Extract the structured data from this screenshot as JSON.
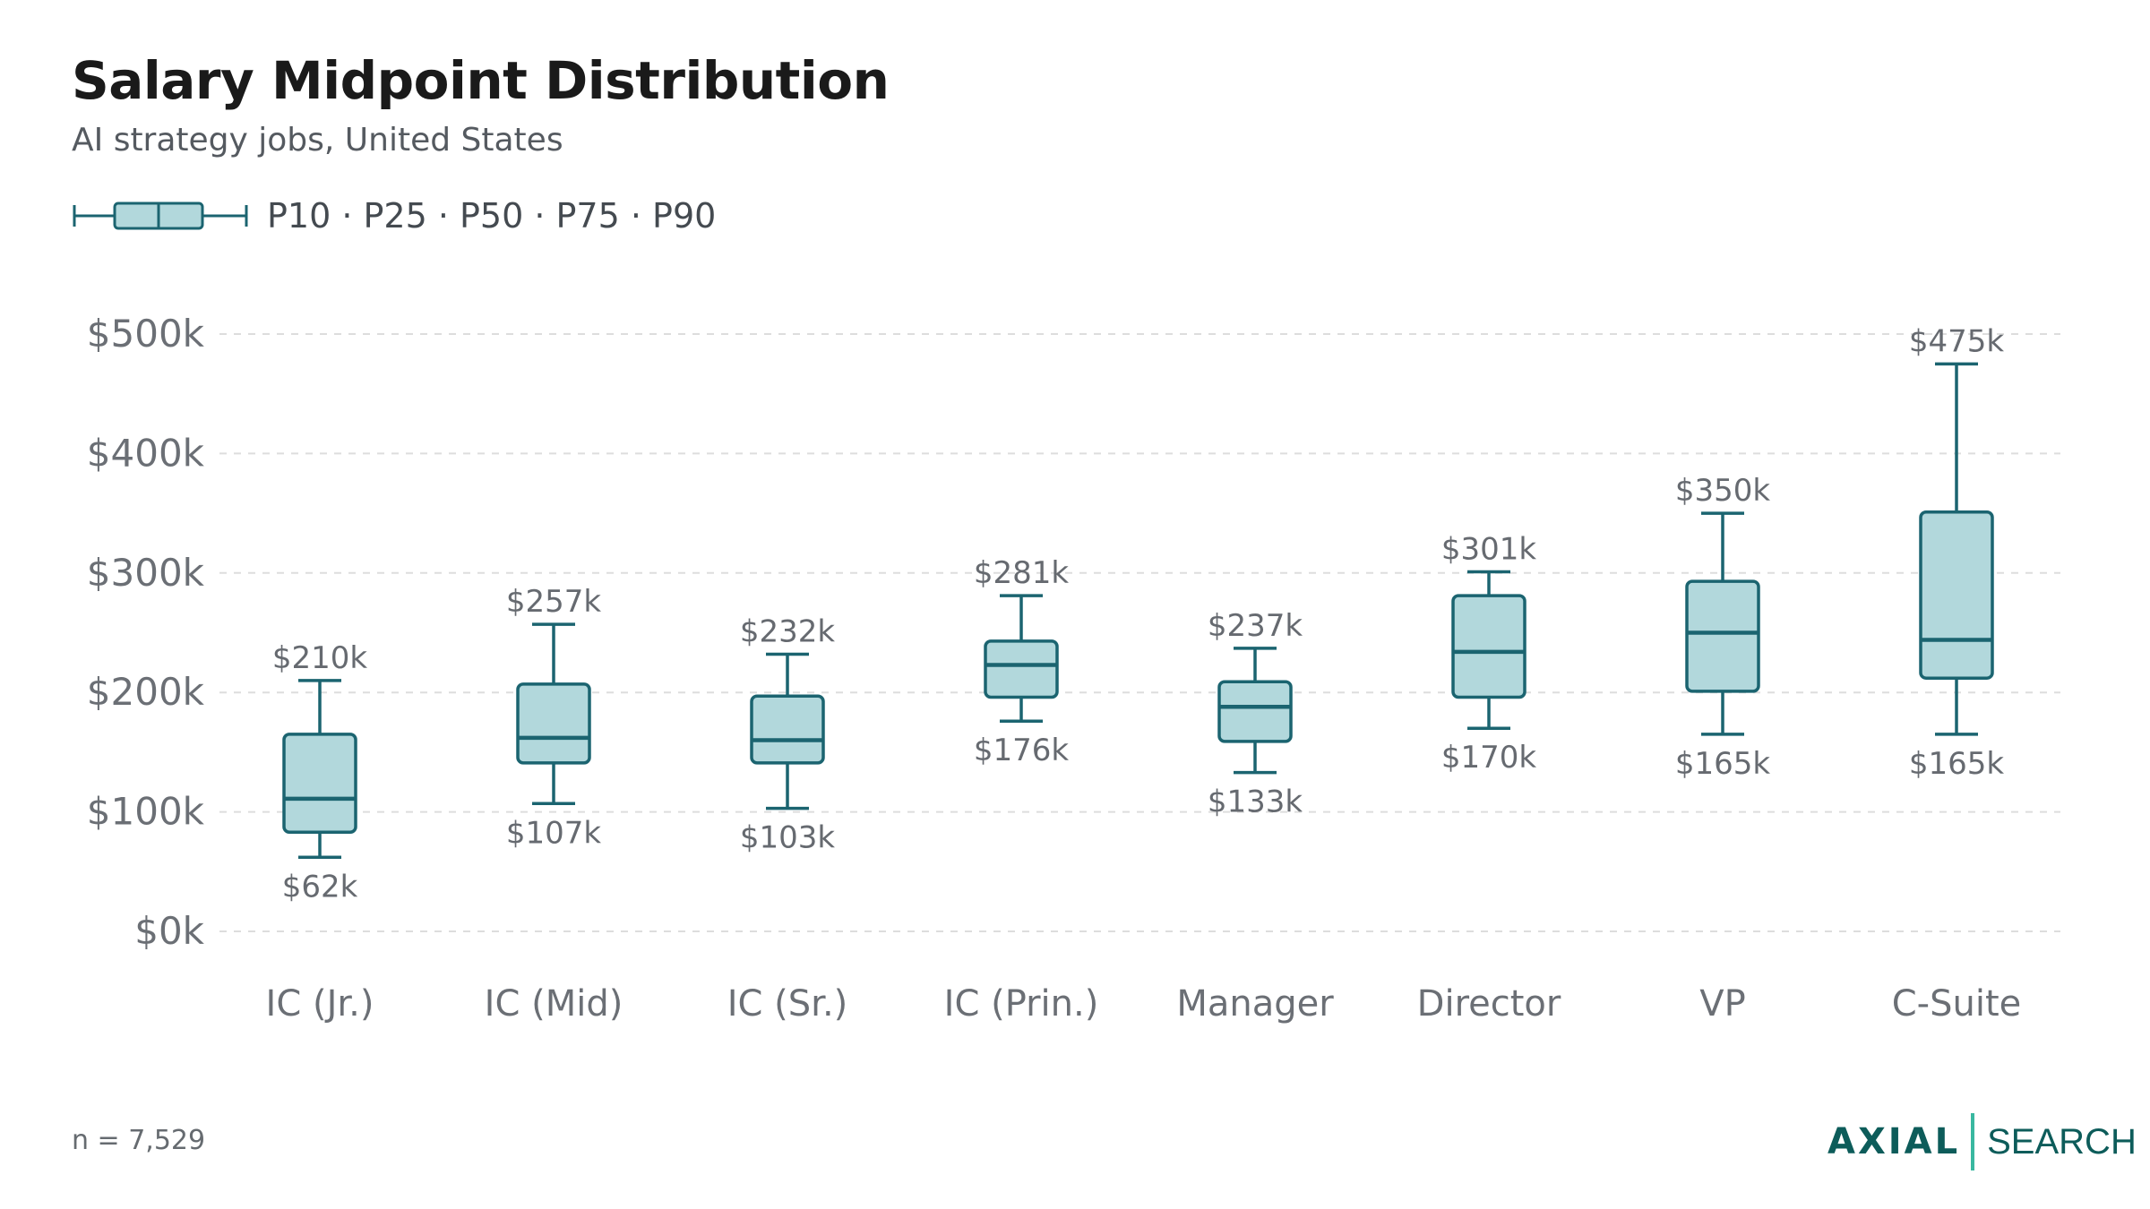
{
  "title": "Salary Midpoint Distribution",
  "subtitle": "AI strategy jobs, United States",
  "legend": {
    "label": "P10 · P25 · P50 · P75 · P90"
  },
  "footnote": "n = 7,529",
  "brand": {
    "name_bold": "AXIAL",
    "name_light": "SEARCH"
  },
  "colors": {
    "box_fill": "#b2d8dc",
    "box_stroke": "#1b6470",
    "grid": "#dddddd",
    "text": "#6b6f75",
    "label": "#666a70"
  },
  "chart_data": {
    "type": "box",
    "categories": [
      "IC (Jr.)",
      "IC (Mid)",
      "IC (Sr.)",
      "IC (Prin.)",
      "Manager",
      "Director",
      "VP",
      "C-Suite"
    ],
    "p10": [
      62,
      107,
      103,
      176,
      133,
      170,
      165,
      165
    ],
    "p25": [
      83,
      141,
      141,
      196,
      159,
      196,
      201,
      212
    ],
    "p50": [
      111,
      162,
      160,
      223,
      188,
      234,
      250,
      244
    ],
    "p75": [
      165,
      207,
      197,
      243,
      209,
      281,
      293,
      351
    ],
    "p90": [
      210,
      257,
      232,
      281,
      237,
      301,
      350,
      475
    ],
    "p10_labels": [
      "$62k",
      "$107k",
      "$103k",
      "$176k",
      "$133k",
      "$170k",
      "$165k",
      "$165k"
    ],
    "p90_labels": [
      "$210k",
      "$257k",
      "$232k",
      "$281k",
      "$237k",
      "$301k",
      "$350k",
      "$475k"
    ],
    "y_ticks": [
      0,
      100,
      200,
      300,
      400,
      500
    ],
    "y_tick_labels": [
      "$0k",
      "$100k",
      "$200k",
      "$300k",
      "$400k",
      "$500k"
    ],
    "ylim": [
      0,
      500
    ],
    "unit": "thousands USD",
    "grid": true
  }
}
